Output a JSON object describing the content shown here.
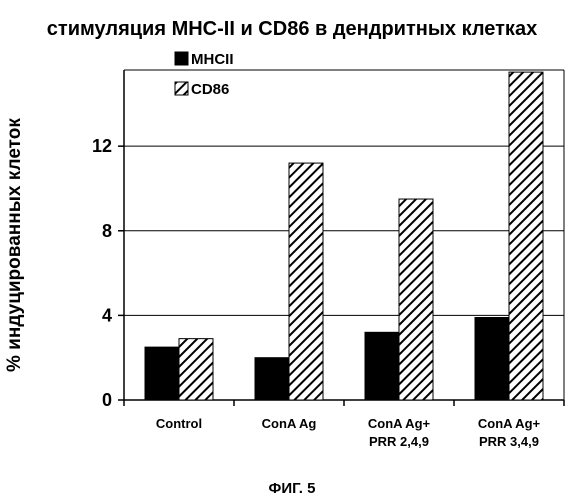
{
  "chart_data": {
    "type": "bar",
    "title": "стимуляция MHC-II и CD86 в дендритных клетках",
    "ylabel": "% индуцированных клеток",
    "xlabel": "",
    "caption": "ФИГ. 5",
    "ylim": [
      0,
      15.6
    ],
    "yticks": [
      "0",
      "4",
      "8",
      "12"
    ],
    "grid": "horizontal",
    "legend_position": "top-left",
    "categories": [
      [
        "Control"
      ],
      [
        "ConA Ag"
      ],
      [
        "ConA Ag+",
        "PRR 2,4,9"
      ],
      [
        "ConA Ag+",
        "PRR 3,4,9"
      ]
    ],
    "series": [
      {
        "name": "MHCII",
        "values": [
          2.5,
          2.0,
          3.2,
          3.9
        ],
        "fill": "solid",
        "color": "#000000"
      },
      {
        "name": "CD86",
        "values": [
          2.9,
          11.2,
          9.5,
          15.5
        ],
        "fill": "hatch",
        "color": "#000000"
      }
    ]
  }
}
